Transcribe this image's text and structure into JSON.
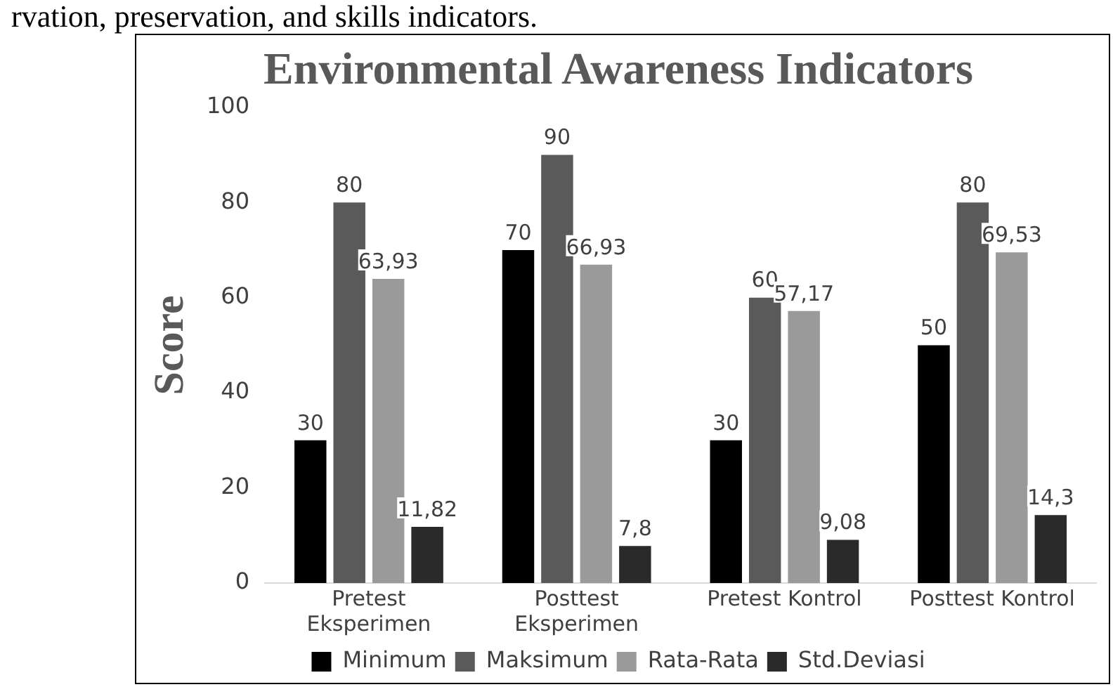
{
  "chart_data": {
    "type": "bar",
    "title": "Environmental Awareness Indicators",
    "ylabel": "Score",
    "annotations": [
      "rvation, preservation, and skills indicators."
    ],
    "categories": [
      "Pretest Eksperimen",
      "Posttest Eksperimen",
      "Pretest Kontrol",
      "Posttest Kontrol"
    ],
    "series": [
      {
        "name": "Minimum",
        "color": "#000000",
        "values": [
          30,
          70,
          30,
          50
        ],
        "value_labels": [
          "30",
          "70",
          "30",
          "50"
        ]
      },
      {
        "name": "Maksimum",
        "color": "#5a5a5a",
        "values": [
          80,
          90,
          60,
          80
        ],
        "value_labels": [
          "80",
          "90",
          "60",
          "80"
        ]
      },
      {
        "name": "Rata-Rata",
        "color": "#9a9a9a",
        "values": [
          63.93,
          66.93,
          57.17,
          69.53
        ],
        "value_labels": [
          "63,93",
          "66,93",
          "57,17",
          "69,53"
        ]
      },
      {
        "name": "Std.Deviasi",
        "color": "#2a2a2a",
        "values": [
          11.82,
          7.8,
          9.08,
          14.3
        ],
        "value_labels": [
          "11,82",
          "7,8",
          "9,08",
          "14,3"
        ]
      }
    ],
    "ylim": [
      0,
      100
    ],
    "yticks": [
      0,
      20,
      40,
      60,
      80,
      100
    ],
    "grid": false,
    "legend": "bottom"
  }
}
